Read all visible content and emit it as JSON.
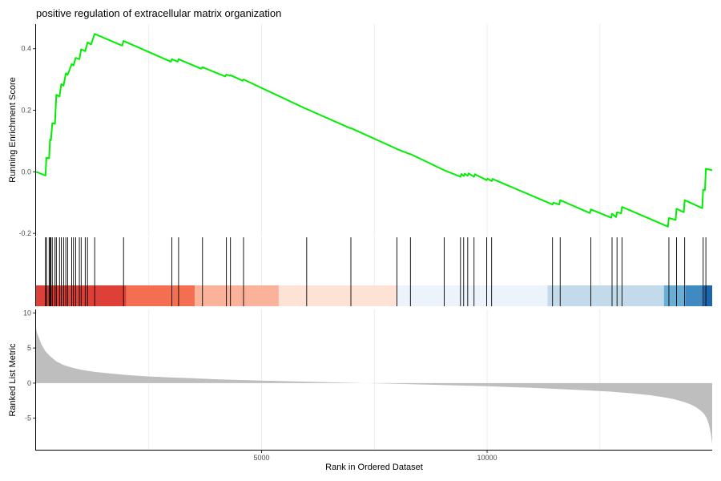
{
  "chart_data": {
    "type": "line",
    "title": "positive regulation of extracellular matrix organization",
    "xlabel": "Rank in Ordered Dataset",
    "xlim": [
      0,
      14990
    ],
    "x_ticks": [
      5000,
      10000
    ],
    "grid": true,
    "running_score": {
      "ylabel": "Running Enrichment Score",
      "ylim": [
        -0.21,
        0.48
      ],
      "y_ticks": [
        -0.2,
        0.0,
        0.2,
        0.4
      ],
      "y_tick_labels": [
        "-0.2",
        "0.0",
        "0.2",
        "0.4"
      ],
      "color": "#00ee00",
      "x": [
        0,
        210,
        230,
        290,
        310,
        330,
        360,
        420,
        450,
        520,
        560,
        610,
        660,
        700,
        790,
        830,
        880,
        960,
        1000,
        1090,
        1140,
        1220,
        1280,
        1300,
        1910,
        1940,
        2990,
        3010,
        3140,
        3160,
        3660,
        3690,
        4190,
        4220,
        4290,
        4310,
        4580,
        4600,
        5980,
        6000,
        6960,
        6980,
        7990,
        8000,
        8280,
        8300,
        9050,
        9070,
        9410,
        9430,
        9480,
        9500,
        9570,
        9590,
        9710,
        9730,
        9990,
        10010,
        10100,
        10120,
        11450,
        11470,
        11600,
        11620,
        12280,
        12300,
        12750,
        12770,
        12860,
        12880,
        12970,
        12990,
        14010,
        14030,
        14180,
        14200,
        14360,
        14380,
        14770,
        14790,
        14830,
        14850,
        14990
      ],
      "y": [
        0.0,
        -0.012,
        0.046,
        0.044,
        0.105,
        0.103,
        0.158,
        0.156,
        0.25,
        0.245,
        0.285,
        0.28,
        0.32,
        0.315,
        0.35,
        0.345,
        0.37,
        0.366,
        0.398,
        0.392,
        0.42,
        0.414,
        0.44,
        0.448,
        0.41,
        0.425,
        0.358,
        0.366,
        0.358,
        0.366,
        0.335,
        0.34,
        0.31,
        0.316,
        0.312,
        0.314,
        0.296,
        0.3,
        0.205,
        0.204,
        0.142,
        0.142,
        0.075,
        0.074,
        0.058,
        0.058,
        0.005,
        0.004,
        -0.016,
        -0.007,
        -0.014,
        -0.006,
        -0.013,
        -0.005,
        -0.016,
        -0.008,
        -0.027,
        -0.022,
        -0.03,
        -0.023,
        -0.106,
        -0.1,
        -0.106,
        -0.092,
        -0.134,
        -0.122,
        -0.149,
        -0.136,
        -0.147,
        -0.131,
        -0.135,
        -0.114,
        -0.178,
        -0.15,
        -0.156,
        -0.12,
        -0.131,
        -0.092,
        -0.118,
        -0.058,
        -0.059,
        0.01,
        0.005
      ]
    },
    "gene_hits": {
      "x": [
        210,
        230,
        290,
        310,
        330,
        360,
        420,
        450,
        520,
        560,
        610,
        660,
        700,
        790,
        830,
        880,
        960,
        1000,
        1090,
        1140,
        1300,
        1940,
        3010,
        3160,
        3690,
        4220,
        4310,
        4600,
        6000,
        6980,
        8000,
        8300,
        9050,
        9410,
        9480,
        9570,
        9710,
        9990,
        10100,
        11450,
        11620,
        12300,
        12770,
        12880,
        12990,
        14030,
        14200,
        14380,
        14790,
        14850
      ]
    },
    "rank_bands": {
      "segments": [
        {
          "from": 0,
          "to": 2000,
          "color": "#de3f36"
        },
        {
          "from": 2000,
          "to": 3520,
          "color": "#f46f51"
        },
        {
          "from": 3520,
          "to": 5380,
          "color": "#fbb29a"
        },
        {
          "from": 5380,
          "to": 8000,
          "color": "#fee2d6"
        },
        {
          "from": 8000,
          "to": 11340,
          "color": "#edf3fb"
        },
        {
          "from": 11340,
          "to": 13920,
          "color": "#c2daea"
        },
        {
          "from": 13920,
          "to": 14400,
          "color": "#6aaed6"
        },
        {
          "from": 14400,
          "to": 14800,
          "color": "#3f8ac3"
        },
        {
          "from": 14800,
          "to": 14990,
          "color": "#1d66ae"
        }
      ]
    },
    "ranked_metric": {
      "ylabel": "Ranked List Metric",
      "ylim": [
        -9.5,
        10.5
      ],
      "y_ticks": [
        -5,
        0,
        5,
        10
      ],
      "y_tick_labels": [
        "-5",
        "0",
        "5",
        "10"
      ],
      "color": "#bebebe",
      "x": [
        0,
        20,
        60,
        120,
        200,
        300,
        450,
        600,
        800,
        1000,
        1300,
        1600,
        2000,
        2500,
        3000,
        3500,
        4000,
        5000,
        6000,
        6800,
        7300,
        8000,
        9000,
        10000,
        11000,
        12000,
        12700,
        13200,
        13600,
        13900,
        14150,
        14350,
        14500,
        14620,
        14720,
        14800,
        14870,
        14920,
        14960,
        14990
      ],
      "y": [
        7.8,
        7.2,
        6.5,
        5.5,
        4.6,
        3.9,
        3.1,
        2.6,
        2.2,
        1.9,
        1.6,
        1.4,
        1.15,
        0.95,
        0.8,
        0.68,
        0.55,
        0.35,
        0.2,
        0.08,
        0.0,
        -0.1,
        -0.28,
        -0.45,
        -0.68,
        -0.98,
        -1.2,
        -1.45,
        -1.72,
        -2.0,
        -2.3,
        -2.65,
        -3.0,
        -3.4,
        -3.85,
        -4.3,
        -5.0,
        -6.0,
        -7.2,
        -8.7
      ]
    }
  }
}
